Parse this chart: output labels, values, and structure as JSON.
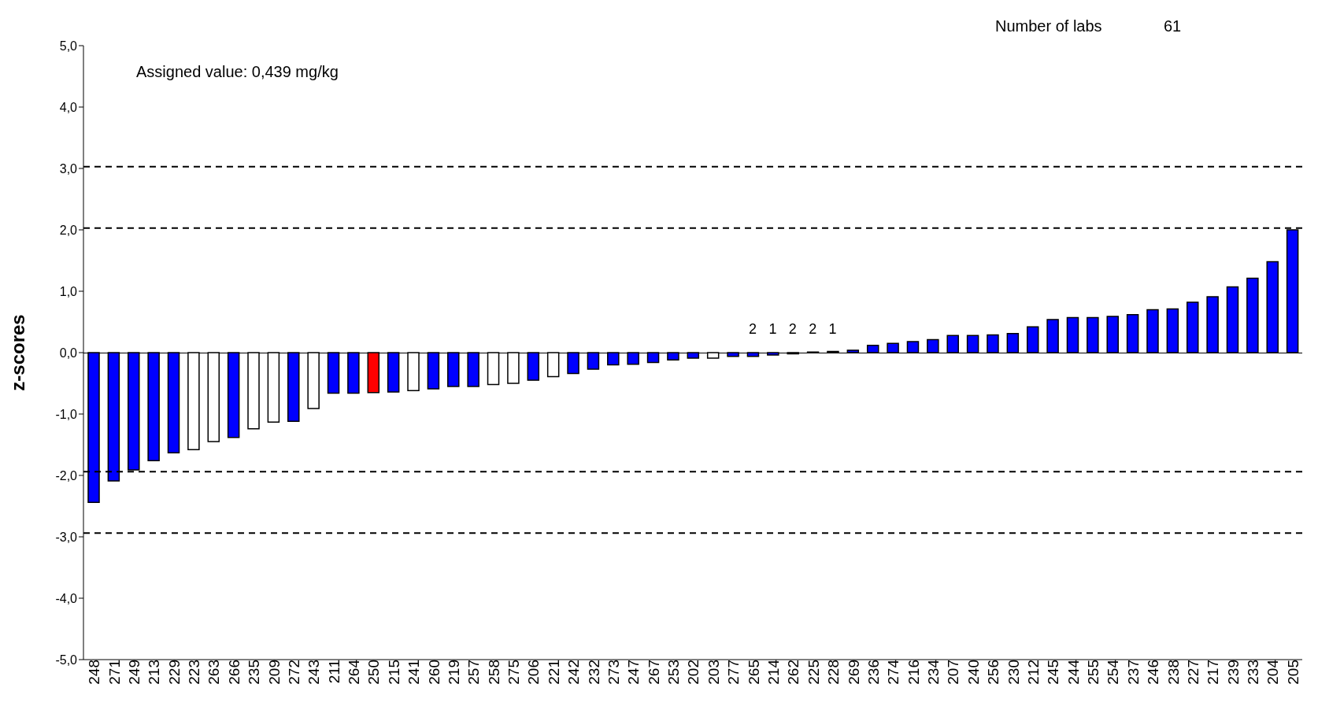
{
  "chart_data": {
    "type": "bar",
    "ylabel": "z-scores",
    "categories": [
      "248",
      "271",
      "249",
      "213",
      "229",
      "223",
      "263",
      "266",
      "235",
      "209",
      "272",
      "243",
      "211",
      "264",
      "250",
      "215",
      "241",
      "260",
      "219",
      "257",
      "258",
      "275",
      "206",
      "221",
      "242",
      "232",
      "273",
      "247",
      "267",
      "253",
      "202",
      "203",
      "277",
      "265",
      "214",
      "262",
      "225",
      "228",
      "269",
      "236",
      "274",
      "216",
      "234",
      "207",
      "240",
      "256",
      "230",
      "212",
      "245",
      "244",
      "255",
      "254",
      "237",
      "246",
      "238",
      "227",
      "217",
      "239",
      "233",
      "204",
      "205"
    ],
    "values": [
      -2.44,
      -2.09,
      -1.91,
      -1.76,
      -1.63,
      -1.58,
      -1.45,
      -1.38,
      -1.24,
      -1.13,
      -1.12,
      -0.91,
      -0.66,
      -0.66,
      -0.65,
      -0.64,
      -0.62,
      -0.59,
      -0.55,
      -0.55,
      -0.52,
      -0.5,
      -0.45,
      -0.39,
      -0.34,
      -0.27,
      -0.2,
      -0.19,
      -0.16,
      -0.12,
      -0.09,
      -0.09,
      -0.06,
      -0.06,
      -0.04,
      -0.02,
      0.01,
      0.02,
      0.04,
      0.12,
      0.15,
      0.18,
      0.21,
      0.28,
      0.28,
      0.29,
      0.31,
      0.42,
      0.54,
      0.57,
      0.57,
      0.59,
      0.62,
      0.7,
      0.71,
      0.82,
      0.91,
      1.07,
      1.21,
      1.48,
      2.0
    ],
    "colors": [
      "#0000ff",
      "#0000ff",
      "#0000ff",
      "#0000ff",
      "#0000ff",
      "#ffffff",
      "#ffffff",
      "#0000ff",
      "#ffffff",
      "#ffffff",
      "#0000ff",
      "#ffffff",
      "#0000ff",
      "#0000ff",
      "#ff0000",
      "#0000ff",
      "#ffffff",
      "#0000ff",
      "#0000ff",
      "#0000ff",
      "#ffffff",
      "#ffffff",
      "#0000ff",
      "#ffffff",
      "#0000ff",
      "#0000ff",
      "#0000ff",
      "#0000ff",
      "#0000ff",
      "#0000ff",
      "#0000ff",
      "#ffffff",
      "#0000ff",
      "#0000ff",
      "#0000ff",
      "#0000ff",
      "#0000ff",
      "#0000ff",
      "#0000ff",
      "#0000ff",
      "#0000ff",
      "#0000ff",
      "#0000ff",
      "#0000ff",
      "#0000ff",
      "#0000ff",
      "#0000ff",
      "#0000ff",
      "#0000ff",
      "#0000ff",
      "#0000ff",
      "#0000ff",
      "#0000ff",
      "#0000ff",
      "#0000ff",
      "#0000ff",
      "#0000ff",
      "#0000ff",
      "#0000ff",
      "#0000ff",
      "#0000ff"
    ],
    "ylim": [
      -5,
      5
    ],
    "yticks": [
      {
        "value": -5,
        "label": "-5,0"
      },
      {
        "value": -4,
        "label": "-4,0"
      },
      {
        "value": -3,
        "label": "-3,0"
      },
      {
        "value": -2,
        "label": "-2,0"
      },
      {
        "value": -1,
        "label": "-1,0"
      },
      {
        "value": 0,
        "label": "0,0"
      },
      {
        "value": 1,
        "label": "1,0"
      },
      {
        "value": 2,
        "label": "2,0"
      },
      {
        "value": 3,
        "label": "3,0"
      },
      {
        "value": 4,
        "label": "4,0"
      },
      {
        "value": 5,
        "label": "5,0"
      }
    ],
    "ref_lines": [
      {
        "axis": "y",
        "value": 3.03,
        "color": "#000000",
        "line_style": "dashed"
      },
      {
        "axis": "y",
        "value": 2.03,
        "color": "#000000",
        "line_style": "dashed"
      },
      {
        "axis": "y",
        "value": -1.94,
        "color": "#000000",
        "line_style": "dashed"
      },
      {
        "axis": "y",
        "value": -2.94,
        "color": "#000000",
        "line_style": "dashed"
      }
    ],
    "annotations": [
      "Assigned value: 0,439  mg/kg",
      "Number of labs",
      "61",
      "2",
      "1",
      "2",
      "2",
      "1"
    ]
  }
}
